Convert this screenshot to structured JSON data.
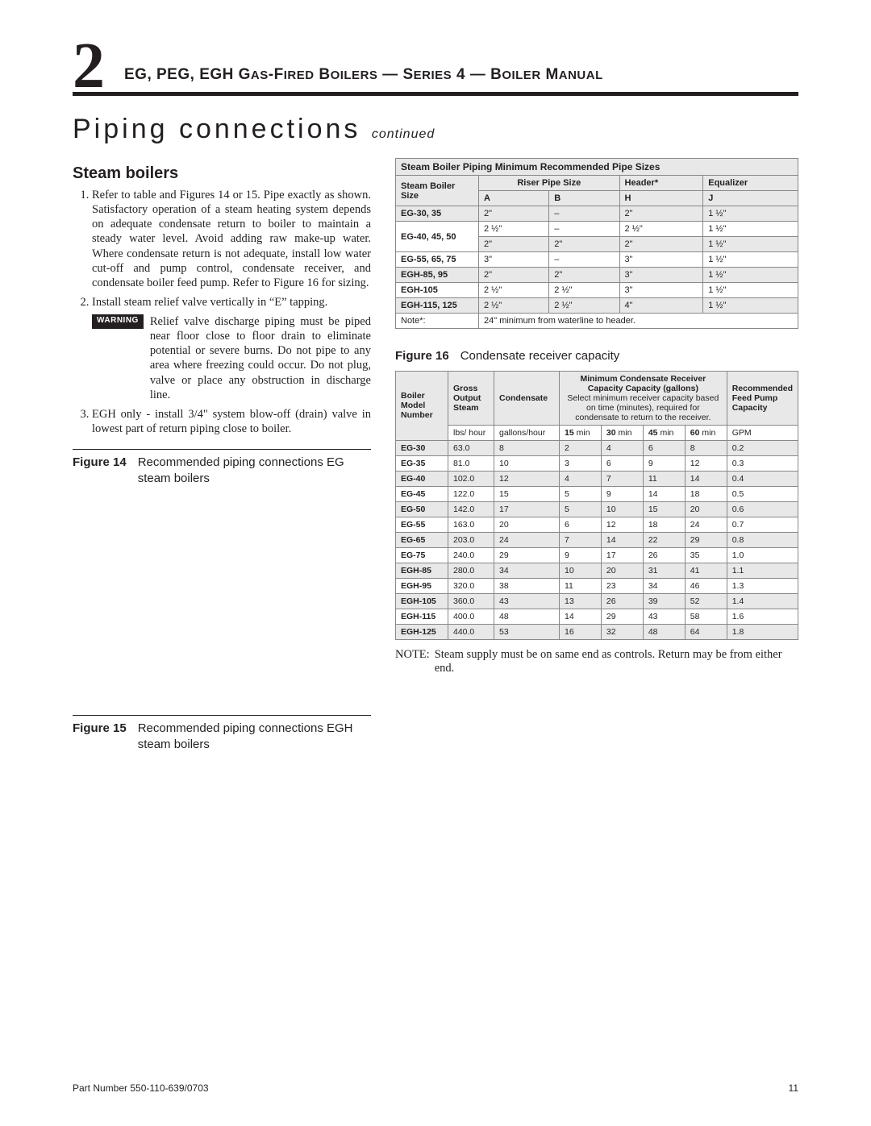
{
  "header": {
    "chapter_number": "2",
    "title": "EG, PEG, EGH Gas-Fired Boilers — Series 4 — Boiler Manual"
  },
  "section": {
    "title": "Piping connections",
    "continued": "continued"
  },
  "subsection_title": "Steam boilers",
  "steps": [
    "Refer to table and Figures 14 or 15. Pipe exactly as shown. Satisfactory operation of a steam heating system depends on adequate condensate return to boiler to maintain a steady water level. Avoid adding raw make-up water. Where condensate return is not adequate, install low water cut-off and pump control, condensate receiver, and condensate boiler feed pump. Refer to Figure 16 for sizing.",
    "Install steam relief valve vertically in “E” tapping.",
    "EGH only - install 3/4\" system blow-off (drain) valve in lowest part of return piping close to boiler."
  ],
  "warning": {
    "badge": "WARNING",
    "text": "Relief valve discharge piping must be piped near floor close to floor drain to eliminate potential or severe burns. Do not pipe to any area where freezing could occur. Do not plug, valve or place any obstruction in discharge line."
  },
  "fig14": {
    "label": "Figure 14",
    "text": "Recommended piping connections EG steam boilers"
  },
  "fig15": {
    "label": "Figure 15",
    "text": "Recommended piping connections EGH steam boilers"
  },
  "fig16": {
    "label": "Figure 16",
    "text": "Condensate receiver capacity"
  },
  "pipe_table": {
    "title": "Steam Boiler Piping Minimum Recommended Pipe Sizes",
    "headers": {
      "col1": "Steam Boiler Size",
      "riser": "Riser Pipe Size",
      "a": "A",
      "b": "B",
      "header": "Header*",
      "h": "H",
      "equalizer": "Equalizer",
      "j": "J"
    },
    "rows": [
      {
        "size": "EG-30, 35",
        "a": "2\"",
        "b": "–",
        "h": "2\"",
        "j": "1 ½\"",
        "shade": true,
        "rowspan": 1
      },
      {
        "size": "EG-40, 45, 50",
        "a": "2 ½\"",
        "b": "–",
        "h": "2 ½\"",
        "j": "1 ½\"",
        "shade": false,
        "rowspan": 2,
        "second": {
          "a": "2\"",
          "b": "2\"",
          "h": "2\"",
          "j": "1 ½\"",
          "shade": true
        }
      },
      {
        "size": "EG-55, 65, 75",
        "a": "3\"",
        "b": "–",
        "h": "3\"",
        "j": "1 ½\"",
        "shade": false,
        "rowspan": 1
      },
      {
        "size": "EGH-85, 95",
        "a": "2\"",
        "b": "2\"",
        "h": "3\"",
        "j": "1 ½\"",
        "shade": true,
        "rowspan": 1
      },
      {
        "size": "EGH-105",
        "a": "2 ½\"",
        "b": "2 ½\"",
        "h": "3\"",
        "j": "1 ½\"",
        "shade": false,
        "rowspan": 1
      },
      {
        "size": "EGH-115, 125",
        "a": "2 ½\"",
        "b": "2 ½\"",
        "h": "4\"",
        "j": "1 ½\"",
        "shade": true,
        "rowspan": 1
      }
    ],
    "note_label": "Note*:",
    "note_text": "24\" minimum from waterline to header."
  },
  "cond_table": {
    "headers": {
      "model": "Boiler Model Number",
      "gross": "Gross Output Steam",
      "cond": "Condensate",
      "minrec_title": "Minimum Condensate Receiver Capacity",
      "minrec_unit": "(gallons)",
      "minrec_sub": "Select minimum receiver capacity based on time (minutes), required for condensate to return to the receiver.",
      "feed": "Recommended Feed Pump Capacity",
      "lbs": "lbs/ hour",
      "gph": "gallons/hour",
      "m15": "15",
      "m30": "30",
      "m45": "45",
      "m60": "60",
      "min": "min",
      "gpm": "GPM"
    },
    "rows": [
      {
        "m": "EG-30",
        "g": "63.0",
        "c": "8",
        "v15": "2",
        "v30": "4",
        "v45": "6",
        "v60": "8",
        "f": "0.2",
        "shade": true
      },
      {
        "m": "EG-35",
        "g": "81.0",
        "c": "10",
        "v15": "3",
        "v30": "6",
        "v45": "9",
        "v60": "12",
        "f": "0.3",
        "shade": false
      },
      {
        "m": "EG-40",
        "g": "102.0",
        "c": "12",
        "v15": "4",
        "v30": "7",
        "v45": "11",
        "v60": "14",
        "f": "0.4",
        "shade": true
      },
      {
        "m": "EG-45",
        "g": "122.0",
        "c": "15",
        "v15": "5",
        "v30": "9",
        "v45": "14",
        "v60": "18",
        "f": "0.5",
        "shade": false
      },
      {
        "m": "EG-50",
        "g": "142.0",
        "c": "17",
        "v15": "5",
        "v30": "10",
        "v45": "15",
        "v60": "20",
        "f": "0.6",
        "shade": true
      },
      {
        "m": "EG-55",
        "g": "163.0",
        "c": "20",
        "v15": "6",
        "v30": "12",
        "v45": "18",
        "v60": "24",
        "f": "0.7",
        "shade": false
      },
      {
        "m": "EG-65",
        "g": "203.0",
        "c": "24",
        "v15": "7",
        "v30": "14",
        "v45": "22",
        "v60": "29",
        "f": "0.8",
        "shade": true
      },
      {
        "m": "EG-75",
        "g": "240.0",
        "c": "29",
        "v15": "9",
        "v30": "17",
        "v45": "26",
        "v60": "35",
        "f": "1.0",
        "shade": false
      },
      {
        "m": "EGH-85",
        "g": "280.0",
        "c": "34",
        "v15": "10",
        "v30": "20",
        "v45": "31",
        "v60": "41",
        "f": "1.1",
        "shade": true
      },
      {
        "m": "EGH-95",
        "g": "320.0",
        "c": "38",
        "v15": "11",
        "v30": "23",
        "v45": "34",
        "v60": "46",
        "f": "1.3",
        "shade": false
      },
      {
        "m": "EGH-105",
        "g": "360.0",
        "c": "43",
        "v15": "13",
        "v30": "26",
        "v45": "39",
        "v60": "52",
        "f": "1.4",
        "shade": true
      },
      {
        "m": "EGH-115",
        "g": "400.0",
        "c": "48",
        "v15": "14",
        "v30": "29",
        "v45": "43",
        "v60": "58",
        "f": "1.6",
        "shade": false
      },
      {
        "m": "EGH-125",
        "g": "440.0",
        "c": "53",
        "v15": "16",
        "v30": "32",
        "v45": "48",
        "v60": "64",
        "f": "1.8",
        "shade": true
      }
    ]
  },
  "bottom_note": {
    "label": "NOTE:",
    "text": "Steam supply must be on same end as controls. Return may be from either end."
  },
  "footer": {
    "part": "Part Number 550-110-639/0703",
    "page": "11"
  }
}
